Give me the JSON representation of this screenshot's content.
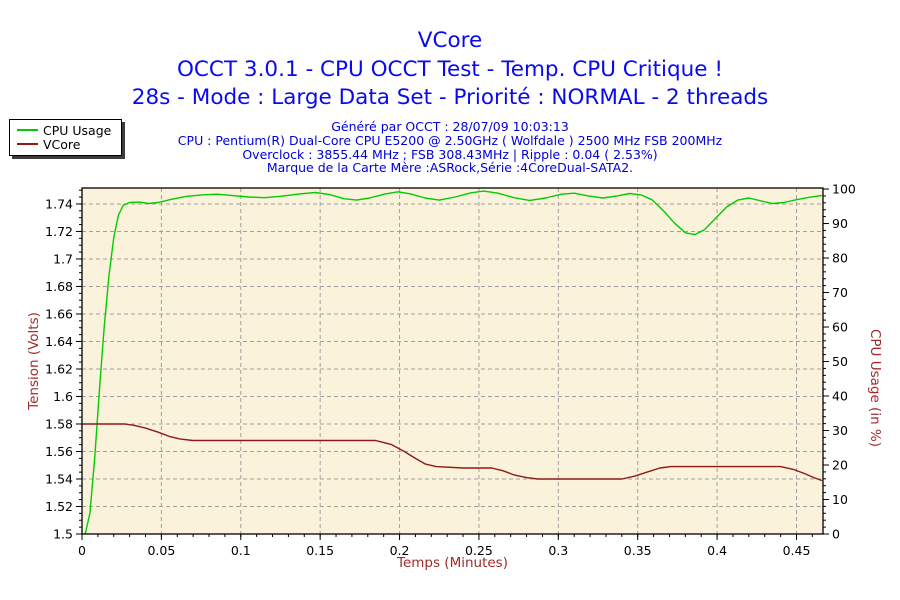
{
  "header": {
    "title": "VCore",
    "subtitle_line1": "OCCT 3.0.1 - CPU OCCT Test - Temp. CPU Critique !",
    "subtitle_line2": "28s - Mode : Large Data Set - Priorité : NORMAL - 2 threads",
    "title_color": "#0a0af0",
    "info_color": "#0000d8",
    "info_lines": [
      "Généré par OCCT : 28/07/09 10:03:13",
      "CPU : Pentium(R) Dual-Core CPU E5200 @ 2.50GHz ( Wolfdale ) 2500 MHz FSB 200MHz",
      "Overclock : 3855.44 MHz ; FSB 308.43MHz | Ripple : 0.04 ( 2.53%)",
      "Marque de la Carte Mère :ASRock,Série :4CoreDual-SATA2."
    ]
  },
  "chart_data": {
    "type": "line",
    "title": "VCore",
    "plot_bg": "#fbf2dc",
    "grid_color": "#a0a0a0",
    "grid": true,
    "legend_position": "top-left",
    "x_axis": {
      "label": "Temps (Minutes)",
      "label_color": "#a52a2a",
      "min": 0,
      "max": 0.4667,
      "major_ticks": [
        0,
        0.05,
        0.1,
        0.15,
        0.2,
        0.25,
        0.3,
        0.35,
        0.4,
        0.45
      ],
      "tick_labels": [
        "0",
        "0.05",
        "0.1",
        "0.15",
        "0.2",
        "0.25",
        "0.3",
        "0.35",
        "0.4",
        "0.45"
      ],
      "minor_step": 0.01
    },
    "y_left": {
      "label": "Tension (Volts)",
      "label_color": "#a52a2a",
      "min": 1.5,
      "max": 1.7516,
      "major_ticks": [
        1.5,
        1.52,
        1.54,
        1.56,
        1.58,
        1.6,
        1.62,
        1.64,
        1.66,
        1.68,
        1.7,
        1.72,
        1.74
      ],
      "tick_labels": [
        "1.5",
        "1.52",
        "1.54",
        "1.56",
        "1.58",
        "1.6",
        "1.62",
        "1.64",
        "1.66",
        "1.68",
        "1.7",
        "1.72",
        "1.74"
      ],
      "minor_step": 0.005
    },
    "y_right": {
      "label": "CPU Usage (in %)",
      "label_color": "#a52a2a",
      "min": 0,
      "max": 100.3,
      "major_ticks": [
        0,
        10,
        20,
        30,
        40,
        50,
        60,
        70,
        80,
        90,
        100
      ],
      "tick_labels": [
        "0",
        "10",
        "20",
        "30",
        "40",
        "50",
        "60",
        "70",
        "80",
        "90",
        "100"
      ],
      "minor_step": 2
    },
    "series": [
      {
        "name": "CPU Usage",
        "axis": "right",
        "color": "#00cc00",
        "points": [
          [
            0.002,
            0
          ],
          [
            0.005,
            6
          ],
          [
            0.008,
            22
          ],
          [
            0.011,
            42
          ],
          [
            0.014,
            60
          ],
          [
            0.017,
            75
          ],
          [
            0.02,
            86
          ],
          [
            0.023,
            92.5
          ],
          [
            0.026,
            95.3
          ],
          [
            0.03,
            96.1
          ],
          [
            0.036,
            96.2
          ],
          [
            0.042,
            95.8
          ],
          [
            0.048,
            96.1
          ],
          [
            0.056,
            97.0
          ],
          [
            0.065,
            97.8
          ],
          [
            0.075,
            98.3
          ],
          [
            0.085,
            98.5
          ],
          [
            0.095,
            98.1
          ],
          [
            0.105,
            97.7
          ],
          [
            0.115,
            97.5
          ],
          [
            0.125,
            97.9
          ],
          [
            0.137,
            98.6
          ],
          [
            0.147,
            99.0
          ],
          [
            0.156,
            98.4
          ],
          [
            0.165,
            97.2
          ],
          [
            0.173,
            96.8
          ],
          [
            0.181,
            97.4
          ],
          [
            0.191,
            98.6
          ],
          [
            0.199,
            99.2
          ],
          [
            0.207,
            98.6
          ],
          [
            0.216,
            97.4
          ],
          [
            0.225,
            96.8
          ],
          [
            0.235,
            97.7
          ],
          [
            0.245,
            98.9
          ],
          [
            0.253,
            99.4
          ],
          [
            0.262,
            98.8
          ],
          [
            0.272,
            97.5
          ],
          [
            0.282,
            96.7
          ],
          [
            0.292,
            97.4
          ],
          [
            0.302,
            98.5
          ],
          [
            0.31,
            98.8
          ],
          [
            0.319,
            98.0
          ],
          [
            0.328,
            97.4
          ],
          [
            0.337,
            98.0
          ],
          [
            0.345,
            98.7
          ],
          [
            0.352,
            98.3
          ],
          [
            0.359,
            96.9
          ],
          [
            0.366,
            93.8
          ],
          [
            0.373,
            90.2
          ],
          [
            0.38,
            87.3
          ],
          [
            0.386,
            86.8
          ],
          [
            0.392,
            88.2
          ],
          [
            0.399,
            91.5
          ],
          [
            0.406,
            94.8
          ],
          [
            0.413,
            96.8
          ],
          [
            0.42,
            97.4
          ],
          [
            0.428,
            96.5
          ],
          [
            0.435,
            95.8
          ],
          [
            0.442,
            96.1
          ],
          [
            0.45,
            96.9
          ],
          [
            0.458,
            97.6
          ],
          [
            0.4657,
            98.1
          ]
        ]
      },
      {
        "name": "VCore",
        "axis": "left",
        "color": "#8c1a1a",
        "points": [
          [
            0,
            1.58
          ],
          [
            0.02,
            1.58
          ],
          [
            0.027,
            1.58
          ],
          [
            0.033,
            1.579
          ],
          [
            0.04,
            1.577
          ],
          [
            0.048,
            1.574
          ],
          [
            0.055,
            1.571
          ],
          [
            0.062,
            1.569
          ],
          [
            0.07,
            1.568
          ],
          [
            0.1,
            1.568
          ],
          [
            0.15,
            1.568
          ],
          [
            0.185,
            1.568
          ],
          [
            0.195,
            1.565
          ],
          [
            0.203,
            1.56
          ],
          [
            0.21,
            1.555
          ],
          [
            0.216,
            1.551
          ],
          [
            0.223,
            1.549
          ],
          [
            0.24,
            1.548
          ],
          [
            0.258,
            1.548
          ],
          [
            0.265,
            1.546
          ],
          [
            0.272,
            1.543
          ],
          [
            0.28,
            1.541
          ],
          [
            0.287,
            1.54
          ],
          [
            0.3,
            1.54
          ],
          [
            0.32,
            1.54
          ],
          [
            0.34,
            1.54
          ],
          [
            0.348,
            1.542
          ],
          [
            0.356,
            1.545
          ],
          [
            0.364,
            1.548
          ],
          [
            0.371,
            1.549
          ],
          [
            0.39,
            1.549
          ],
          [
            0.42,
            1.549
          ],
          [
            0.44,
            1.549
          ],
          [
            0.448,
            1.547
          ],
          [
            0.455,
            1.544
          ],
          [
            0.461,
            1.541
          ],
          [
            0.4657,
            1.539
          ]
        ]
      }
    ]
  }
}
